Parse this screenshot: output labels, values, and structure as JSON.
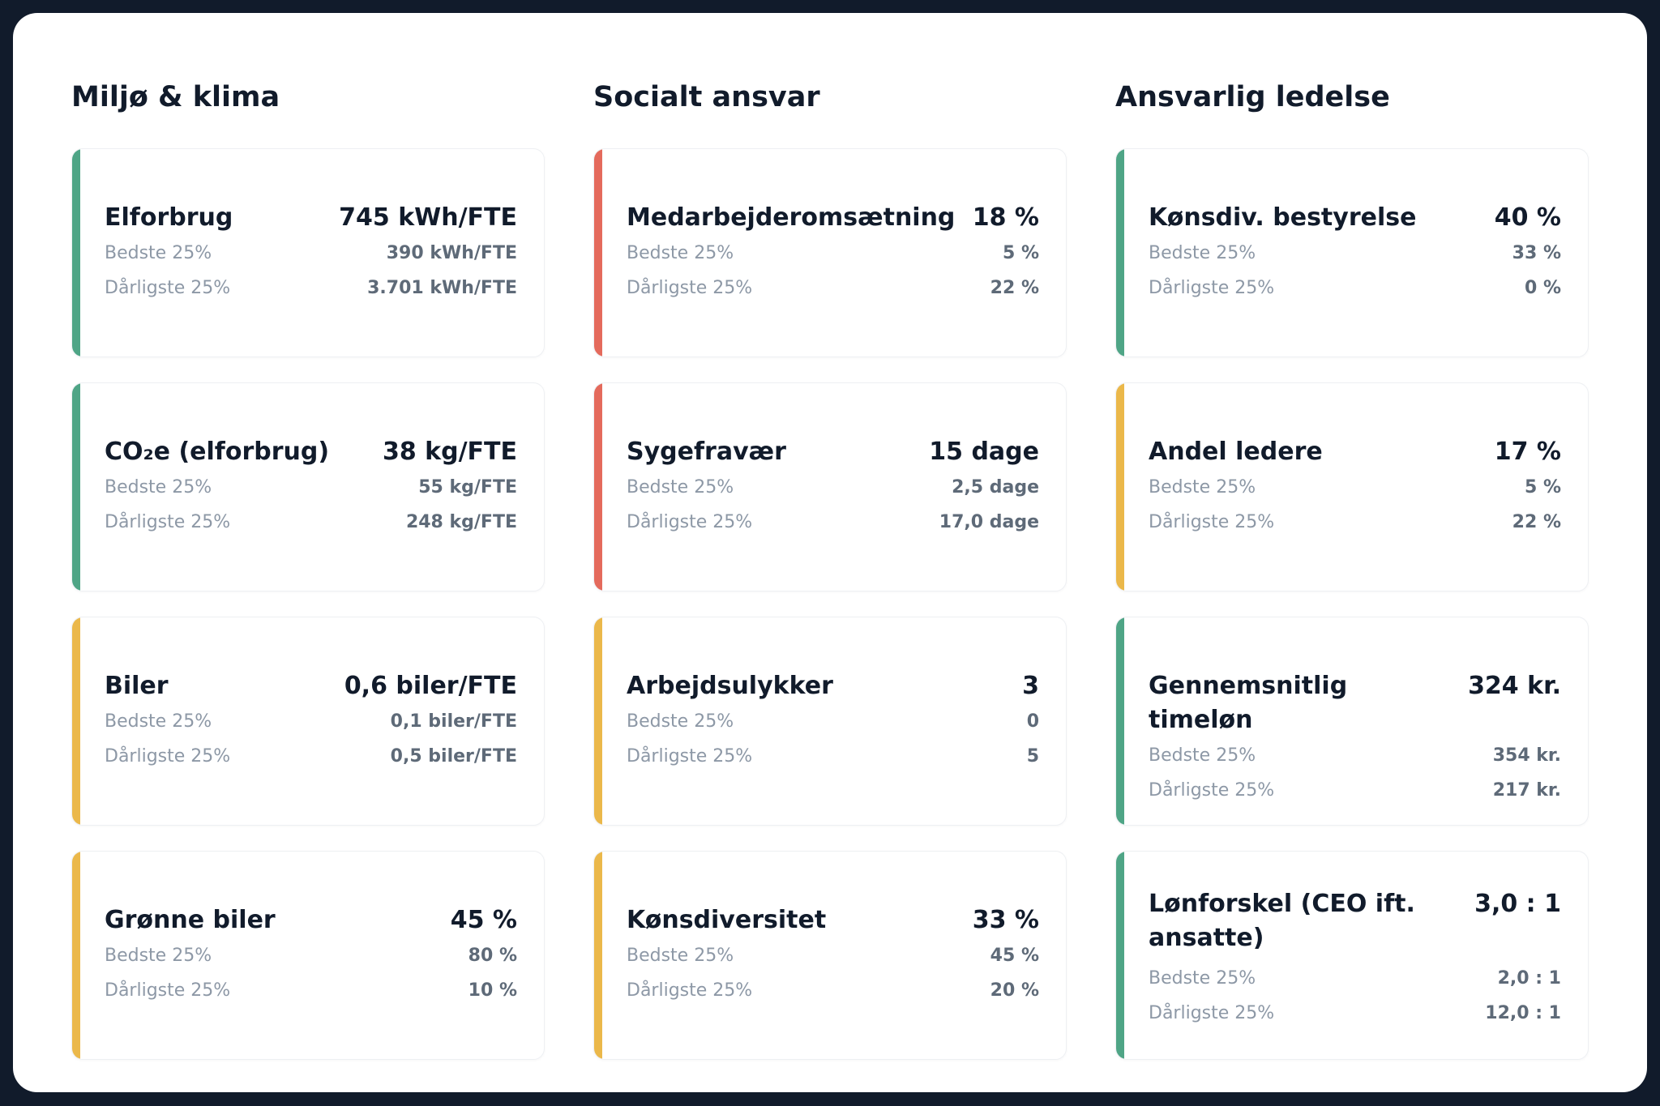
{
  "colors": {
    "green": "#4fa586",
    "red": "#e46a5c",
    "yellow": "#ebb84a"
  },
  "labels": {
    "best": "Bedste 25%",
    "worst": "Dårligste 25%"
  },
  "columns": [
    {
      "title": "Miljø & klima",
      "cards": [
        {
          "name": "Elforbrug",
          "value": "745 kWh/FTE",
          "best": "390 kWh/FTE",
          "worst": "3.701 kWh/FTE",
          "status": "green"
        },
        {
          "name": "CO₂e (elforbrug)",
          "value": "38 kg/FTE",
          "best": "55 kg/FTE",
          "worst": "248 kg/FTE",
          "status": "green"
        },
        {
          "name": "Biler",
          "value": "0,6 biler/FTE",
          "best": "0,1 biler/FTE",
          "worst": "0,5 biler/FTE",
          "status": "yellow"
        },
        {
          "name": "Grønne biler",
          "value": "45 %",
          "best": "80 %",
          "worst": "10 %",
          "status": "yellow"
        }
      ]
    },
    {
      "title": "Socialt ansvar",
      "cards": [
        {
          "name": "Medarbejderomsætning",
          "value": "18 %",
          "best": "5 %",
          "worst": "22 %",
          "status": "red"
        },
        {
          "name": "Sygefravær",
          "value": "15 dage",
          "best": "2,5 dage",
          "worst": "17,0 dage",
          "status": "red"
        },
        {
          "name": "Arbejdsulykker",
          "value": "3",
          "best": "0",
          "worst": "5",
          "status": "yellow"
        },
        {
          "name": "Kønsdiversitet",
          "value": "33 %",
          "best": "45 %",
          "worst": "20 %",
          "status": "yellow"
        }
      ]
    },
    {
      "title": "Ansvarlig ledelse",
      "cards": [
        {
          "name": "Kønsdiv. bestyrelse",
          "value": "40 %",
          "best": "33 %",
          "worst": "0 %",
          "status": "green"
        },
        {
          "name": "Andel ledere",
          "value": "17 %",
          "best": "5 %",
          "worst": "22 %",
          "status": "yellow"
        },
        {
          "name": "Gennemsnitlig timeløn",
          "value": "324 kr.",
          "best": "354 kr.",
          "worst": "217 kr.",
          "status": "green"
        },
        {
          "name": "Lønforskel (CEO ift. ansatte)",
          "value": "3,0 : 1",
          "best": "2,0 : 1",
          "worst": "12,0 : 1",
          "status": "green",
          "wrap": true
        }
      ]
    }
  ]
}
